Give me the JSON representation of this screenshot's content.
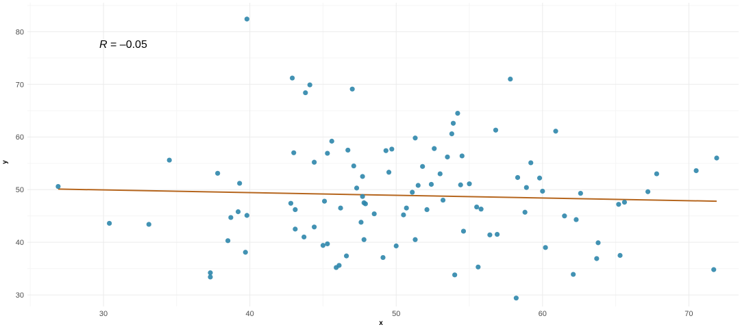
{
  "chart_data": {
    "type": "scatter",
    "xlabel": "x",
    "ylabel": "y",
    "xlim": [
      24.8,
      73.4
    ],
    "ylim": [
      27.8,
      85.5
    ],
    "x_ticks": [
      30,
      40,
      50,
      60,
      70
    ],
    "y_ticks": [
      30,
      40,
      50,
      60,
      70,
      80
    ],
    "grid": true,
    "annotation": {
      "prefix": "R",
      "text": " = –0.05"
    },
    "point_color": "#2e86ab",
    "fit_color": "#b5651d",
    "fit_line": {
      "x": [
        26.9,
        71.9
      ],
      "y": [
        50.1,
        47.8
      ]
    },
    "points": [
      [
        26.9,
        50.6
      ],
      [
        30.4,
        43.6
      ],
      [
        33.1,
        43.4
      ],
      [
        34.5,
        55.6
      ],
      [
        37.3,
        34.2
      ],
      [
        37.3,
        33.4
      ],
      [
        37.8,
        53.1
      ],
      [
        38.5,
        40.3
      ],
      [
        38.7,
        44.7
      ],
      [
        39.2,
        45.8
      ],
      [
        39.3,
        51.2
      ],
      [
        39.7,
        38.1
      ],
      [
        39.8,
        82.4
      ],
      [
        39.8,
        45.1
      ],
      [
        42.8,
        47.4
      ],
      [
        42.9,
        71.2
      ],
      [
        43.0,
        57.0
      ],
      [
        43.1,
        42.5
      ],
      [
        43.1,
        46.2
      ],
      [
        43.7,
        41.0
      ],
      [
        43.8,
        68.4
      ],
      [
        44.1,
        69.9
      ],
      [
        44.4,
        42.9
      ],
      [
        44.4,
        55.2
      ],
      [
        45.0,
        39.4
      ],
      [
        45.1,
        47.8
      ],
      [
        45.3,
        39.7
      ],
      [
        45.3,
        56.9
      ],
      [
        45.6,
        59.2
      ],
      [
        45.9,
        35.2
      ],
      [
        46.1,
        35.6
      ],
      [
        46.2,
        46.5
      ],
      [
        46.6,
        37.4
      ],
      [
        46.7,
        57.5
      ],
      [
        47.0,
        69.1
      ],
      [
        47.1,
        54.5
      ],
      [
        47.3,
        50.3
      ],
      [
        47.6,
        43.8
      ],
      [
        47.7,
        52.5
      ],
      [
        47.7,
        48.7
      ],
      [
        47.8,
        47.5
      ],
      [
        47.8,
        40.5
      ],
      [
        47.9,
        47.3
      ],
      [
        48.5,
        45.4
      ],
      [
        49.1,
        37.1
      ],
      [
        49.3,
        57.4
      ],
      [
        49.5,
        53.3
      ],
      [
        49.7,
        57.7
      ],
      [
        50.0,
        39.3
      ],
      [
        50.5,
        45.2
      ],
      [
        50.7,
        46.5
      ],
      [
        51.1,
        49.5
      ],
      [
        51.3,
        59.8
      ],
      [
        51.3,
        40.5
      ],
      [
        51.5,
        50.8
      ],
      [
        51.8,
        54.4
      ],
      [
        52.1,
        46.2
      ],
      [
        52.4,
        51.0
      ],
      [
        52.6,
        57.8
      ],
      [
        53.0,
        53.0
      ],
      [
        53.2,
        48.0
      ],
      [
        53.5,
        56.2
      ],
      [
        53.8,
        60.6
      ],
      [
        53.9,
        62.6
      ],
      [
        54.0,
        33.8
      ],
      [
        54.2,
        64.5
      ],
      [
        54.4,
        50.9
      ],
      [
        54.5,
        56.4
      ],
      [
        54.6,
        42.1
      ],
      [
        55.0,
        51.1
      ],
      [
        55.5,
        46.7
      ],
      [
        55.6,
        35.3
      ],
      [
        55.8,
        46.3
      ],
      [
        56.4,
        41.4
      ],
      [
        56.8,
        61.3
      ],
      [
        56.9,
        41.5
      ],
      [
        57.8,
        71.0
      ],
      [
        58.2,
        29.4
      ],
      [
        58.3,
        52.3
      ],
      [
        58.8,
        45.7
      ],
      [
        58.9,
        50.4
      ],
      [
        59.2,
        55.1
      ],
      [
        59.8,
        52.2
      ],
      [
        60.0,
        49.7
      ],
      [
        60.2,
        39.0
      ],
      [
        60.9,
        61.1
      ],
      [
        61.5,
        45.0
      ],
      [
        62.1,
        33.9
      ],
      [
        62.3,
        44.3
      ],
      [
        62.6,
        49.3
      ],
      [
        63.7,
        36.9
      ],
      [
        63.8,
        39.9
      ],
      [
        65.2,
        47.2
      ],
      [
        65.3,
        37.5
      ],
      [
        65.6,
        47.6
      ],
      [
        67.2,
        49.6
      ],
      [
        67.8,
        53.0
      ],
      [
        70.5,
        53.6
      ],
      [
        71.7,
        34.8
      ],
      [
        71.9,
        56.0
      ]
    ]
  }
}
